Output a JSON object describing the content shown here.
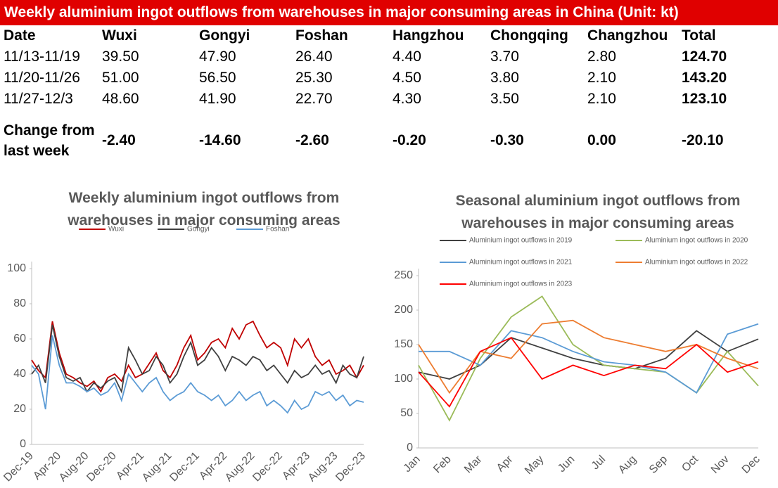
{
  "header": {
    "title": "Weekly aluminium ingot outflows from warehouses in major consuming areas in China (Unit: kt)"
  },
  "table": {
    "columns": [
      "Date",
      "Wuxi",
      "Gongyi",
      "Foshan",
      "Hangzhou",
      "Chongqing",
      "Changzhou",
      "Total"
    ],
    "rows": [
      [
        "11/13-11/19",
        "39.50",
        "47.90",
        "26.40",
        "4.40",
        "3.70",
        "2.80",
        "124.70"
      ],
      [
        "11/20-11/26",
        "51.00",
        "56.50",
        "25.30",
        "4.50",
        "3.80",
        "2.10",
        "143.20"
      ],
      [
        "11/27-12/3",
        "48.60",
        "41.90",
        "22.70",
        "4.30",
        "3.50",
        "2.10",
        "123.10"
      ],
      [
        "Change from last week",
        "-2.40",
        "-14.60",
        "-2.60",
        "-0.20",
        "-0.30",
        "0.00",
        "-20.10"
      ]
    ]
  },
  "chart_data": [
    {
      "type": "line",
      "title": "Weekly aluminium ingot outflows from warehouses in major consuming areas",
      "categories": [
        "Dec-19",
        null,
        null,
        null,
        "Apr-20",
        null,
        null,
        null,
        "Aug-20",
        null,
        null,
        null,
        "Dec-20",
        null,
        null,
        null,
        "Apr-21",
        null,
        null,
        null,
        "Aug-21",
        null,
        null,
        null,
        "Dec-21",
        null,
        null,
        null,
        "Apr-22",
        null,
        null,
        null,
        "Aug-22",
        null,
        null,
        null,
        "Dec-22",
        null,
        null,
        null,
        "Apr-23",
        null,
        null,
        null,
        "Aug-23",
        null,
        null,
        null,
        "Dec-23"
      ],
      "series": [
        {
          "name": "Wuxi",
          "color": "#c00000",
          "values": [
            48,
            42,
            38,
            70,
            52,
            40,
            38,
            35,
            33,
            36,
            30,
            38,
            40,
            36,
            45,
            38,
            40,
            46,
            52,
            42,
            38,
            45,
            55,
            62,
            48,
            52,
            58,
            60,
            55,
            66,
            60,
            68,
            70,
            62,
            55,
            58,
            55,
            45,
            60,
            55,
            60,
            50,
            45,
            48,
            40,
            42,
            45,
            38,
            45
          ]
        },
        {
          "name": "Gongyi",
          "color": "#404040",
          "values": [
            40,
            45,
            35,
            68,
            50,
            38,
            36,
            38,
            30,
            35,
            32,
            36,
            38,
            30,
            55,
            48,
            40,
            42,
            50,
            45,
            35,
            40,
            50,
            58,
            45,
            48,
            55,
            50,
            42,
            50,
            48,
            45,
            50,
            48,
            42,
            45,
            40,
            35,
            42,
            38,
            40,
            45,
            40,
            42,
            35,
            45,
            40,
            38,
            50
          ]
        },
        {
          "name": "Foshan",
          "color": "#5b9bd5",
          "values": [
            45,
            40,
            20,
            62,
            45,
            35,
            35,
            33,
            30,
            32,
            28,
            30,
            35,
            25,
            40,
            35,
            30,
            35,
            38,
            30,
            25,
            28,
            30,
            35,
            30,
            28,
            25,
            28,
            22,
            25,
            30,
            25,
            28,
            30,
            22,
            25,
            22,
            18,
            25,
            20,
            22,
            30,
            28,
            30,
            25,
            28,
            22,
            25,
            24
          ]
        }
      ],
      "ylim": [
        0,
        100
      ],
      "yticks": [
        0,
        20,
        40,
        60,
        80,
        100
      ]
    },
    {
      "type": "line",
      "title": "Seasonal aluminium ingot outflows from warehouses in major consuming areas",
      "categories": [
        "Jan",
        "Feb",
        "Mar",
        "Apr",
        "May",
        "Jun",
        "Jul",
        "Aug",
        "Sep",
        "Oct",
        "Nov",
        "Dec"
      ],
      "series": [
        {
          "name": "Aluminium ingot outflows in 2019",
          "color": "#404040",
          "values": [
            110,
            100,
            120,
            160,
            145,
            130,
            120,
            115,
            130,
            170,
            140,
            158
          ]
        },
        {
          "name": "Aluminium ingot outflows in 2020",
          "color": "#9bbb59",
          "values": [
            120,
            40,
            130,
            190,
            220,
            150,
            120,
            115,
            110,
            80,
            140,
            90
          ]
        },
        {
          "name": "Aluminium ingot outflows in 2021",
          "color": "#5b9bd5",
          "values": [
            140,
            140,
            120,
            170,
            160,
            140,
            125,
            120,
            110,
            80,
            165,
            180
          ]
        },
        {
          "name": "Aluminium ingot outflows in 2022",
          "color": "#ed7d31",
          "values": [
            150,
            80,
            140,
            130,
            180,
            185,
            160,
            150,
            140,
            150,
            130,
            115
          ]
        },
        {
          "name": "Aluminium ingot outflows in 2023",
          "color": "#ff0000",
          "values": [
            110,
            60,
            140,
            160,
            100,
            120,
            105,
            120,
            115,
            150,
            110,
            125
          ]
        }
      ],
      "ylim": [
        0,
        250
      ],
      "yticks": [
        0,
        50,
        100,
        150,
        200,
        250
      ]
    }
  ]
}
